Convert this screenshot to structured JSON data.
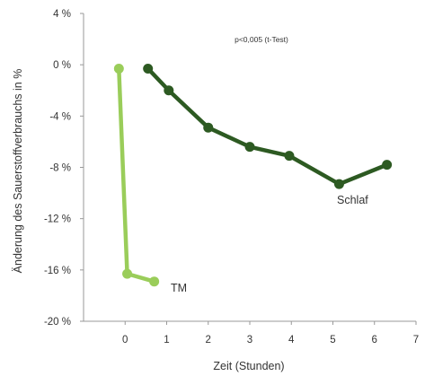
{
  "chart_data": {
    "type": "line",
    "title": "",
    "xlabel": "Zeit (Stunden)",
    "ylabel": "Änderung des Sauerstoffverbrauchs in %",
    "xlim": [
      -1,
      7
    ],
    "ylim": [
      -20,
      4
    ],
    "x_ticks": [
      0,
      1,
      2,
      3,
      4,
      5,
      6,
      7
    ],
    "y_ticks": [
      {
        "value": 4,
        "label": "4 %"
      },
      {
        "value": 0,
        "label": "0 %"
      },
      {
        "value": -4,
        "label": "-4 %"
      },
      {
        "value": -8,
        "label": "-8 %"
      },
      {
        "value": -12,
        "label": "-12 %"
      },
      {
        "value": -16,
        "label": "-16 %"
      },
      {
        "value": -20,
        "label": "-20 %"
      }
    ],
    "annotation": "p<0,005 (t-Test)",
    "grid": false,
    "series": [
      {
        "name": "TM",
        "color": "#9acd5a",
        "points": [
          {
            "x": -0.15,
            "y": -0.3
          },
          {
            "x": 0.05,
            "y": -16.3
          },
          {
            "x": 0.7,
            "y": -16.9
          }
        ]
      },
      {
        "name": "Schlaf",
        "color": "#2d5a22",
        "points": [
          {
            "x": 0.55,
            "y": -0.3
          },
          {
            "x": 1.05,
            "y": -2.0
          },
          {
            "x": 2.0,
            "y": -4.9
          },
          {
            "x": 3.0,
            "y": -6.4
          },
          {
            "x": 3.95,
            "y": -7.1
          },
          {
            "x": 5.15,
            "y": -9.3
          },
          {
            "x": 6.3,
            "y": -7.8
          }
        ]
      }
    ]
  }
}
